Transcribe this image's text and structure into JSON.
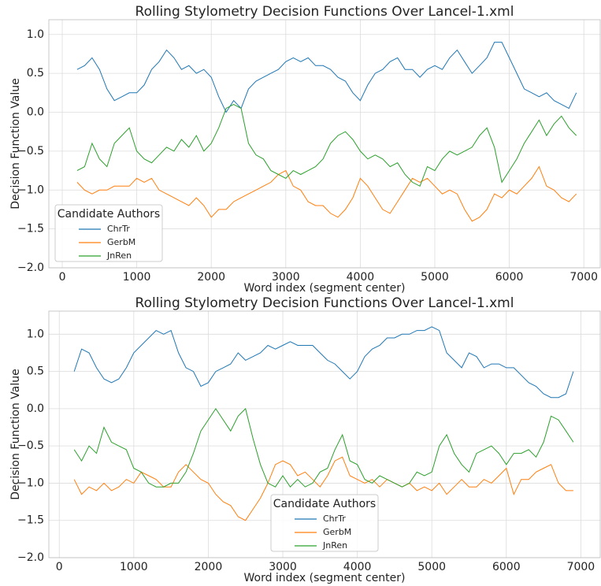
{
  "chart_data": [
    {
      "type": "line",
      "title": "Rolling Stylometry Decision Functions Over Lancel-1.xml",
      "x_label": "Word index (segment center)",
      "y_label": "Decision Function Value",
      "x": [
        200,
        300,
        400,
        500,
        600,
        700,
        800,
        900,
        1000,
        1100,
        1200,
        1300,
        1400,
        1500,
        1600,
        1700,
        1800,
        1900,
        2000,
        2100,
        2200,
        2300,
        2400,
        2500,
        2600,
        2700,
        2800,
        2900,
        3000,
        3100,
        3200,
        3300,
        3400,
        3500,
        3600,
        3700,
        3800,
        3900,
        4000,
        4100,
        4200,
        4300,
        4400,
        4500,
        4600,
        4700,
        4800,
        4900,
        5000,
        5100,
        5200,
        5300,
        5400,
        5500,
        5600,
        5700,
        5800,
        5900,
        6000,
        6100,
        6200,
        6300,
        6400,
        6500,
        6600,
        6700,
        6800,
        6900
      ],
      "series": [
        {
          "name": "ChrTr",
          "color": "#1f77b4",
          "values": [
            0.55,
            0.6,
            0.7,
            0.55,
            0.3,
            0.15,
            0.2,
            0.25,
            0.25,
            0.35,
            0.55,
            0.65,
            0.8,
            0.7,
            0.55,
            0.6,
            0.5,
            0.55,
            0.45,
            0.2,
            0.0,
            0.15,
            0.05,
            0.3,
            0.4,
            0.45,
            0.5,
            0.55,
            0.65,
            0.7,
            0.65,
            0.7,
            0.6,
            0.6,
            0.55,
            0.45,
            0.4,
            0.25,
            0.15,
            0.35,
            0.5,
            0.55,
            0.65,
            0.7,
            0.55,
            0.55,
            0.45,
            0.55,
            0.6,
            0.55,
            0.7,
            0.8,
            0.65,
            0.5,
            0.6,
            0.7,
            0.9,
            0.9,
            0.7,
            0.5,
            0.3,
            0.25,
            0.2,
            0.25,
            0.15,
            0.1,
            0.05,
            0.25
          ]
        },
        {
          "name": "GerbM",
          "color": "#ff7f0e",
          "values": [
            -0.9,
            -1.0,
            -1.05,
            -1.0,
            -1.0,
            -0.95,
            -0.95,
            -0.95,
            -0.85,
            -0.9,
            -0.85,
            -1.0,
            -1.05,
            -1.1,
            -1.15,
            -1.2,
            -1.1,
            -1.2,
            -1.35,
            -1.25,
            -1.25,
            -1.15,
            -1.1,
            -1.05,
            -1.0,
            -0.95,
            -0.9,
            -0.8,
            -0.75,
            -0.95,
            -1.0,
            -1.15,
            -1.2,
            -1.2,
            -1.3,
            -1.35,
            -1.25,
            -1.1,
            -0.85,
            -0.95,
            -1.1,
            -1.25,
            -1.3,
            -1.15,
            -1.0,
            -0.85,
            -0.9,
            -0.85,
            -0.95,
            -1.05,
            -1.0,
            -1.05,
            -1.25,
            -1.4,
            -1.35,
            -1.25,
            -1.05,
            -1.1,
            -1.0,
            -1.05,
            -0.95,
            -0.85,
            -0.7,
            -0.95,
            -1.0,
            -1.1,
            -1.15,
            -1.05
          ]
        },
        {
          "name": "JnRen",
          "color": "#2ca02c",
          "values": [
            -0.75,
            -0.7,
            -0.4,
            -0.6,
            -0.7,
            -0.4,
            -0.3,
            -0.2,
            -0.5,
            -0.6,
            -0.65,
            -0.55,
            -0.45,
            -0.5,
            -0.35,
            -0.45,
            -0.3,
            -0.5,
            -0.4,
            -0.2,
            0.05,
            0.1,
            0.05,
            -0.4,
            -0.55,
            -0.6,
            -0.75,
            -0.8,
            -0.85,
            -0.75,
            -0.8,
            -0.75,
            -0.7,
            -0.6,
            -0.4,
            -0.3,
            -0.25,
            -0.35,
            -0.5,
            -0.6,
            -0.55,
            -0.6,
            -0.7,
            -0.65,
            -0.8,
            -0.9,
            -0.95,
            -0.7,
            -0.75,
            -0.6,
            -0.5,
            -0.55,
            -0.5,
            -0.45,
            -0.3,
            -0.2,
            -0.45,
            -0.9,
            -0.75,
            -0.6,
            -0.4,
            -0.25,
            -0.1,
            -0.3,
            -0.15,
            -0.05,
            -0.2,
            -0.3
          ]
        }
      ],
      "xlim": [
        -180,
        7220
      ],
      "xticks": [
        0,
        1000,
        2000,
        3000,
        4000,
        5000,
        6000,
        7000
      ],
      "ylim": [
        -2.0,
        1.19
      ],
      "yticks": [
        {
          "value": -2.0,
          "label": "−2.0"
        },
        {
          "value": -1.5,
          "label": "−1.5"
        },
        {
          "value": -1.0,
          "label": "−1.0"
        },
        {
          "value": -0.5,
          "label": "−0.5"
        },
        {
          "value": 0.0,
          "label": "0.0"
        },
        {
          "value": 0.5,
          "label": "0.5"
        },
        {
          "value": 1.0,
          "label": "1.0"
        }
      ],
      "grid": true,
      "legend_title": "Candidate Authors",
      "legend_loc": "lower-left"
    },
    {
      "type": "line",
      "title": "Rolling Stylometry Decision Functions Over Lancel-1.xml",
      "x_label": "Word index (segment center)",
      "y_label": "Decision Function Value",
      "x": [
        200,
        300,
        400,
        500,
        600,
        700,
        800,
        900,
        1000,
        1100,
        1200,
        1300,
        1400,
        1500,
        1600,
        1700,
        1800,
        1900,
        2000,
        2100,
        2200,
        2300,
        2400,
        2500,
        2600,
        2700,
        2800,
        2900,
        3000,
        3100,
        3200,
        3300,
        3400,
        3500,
        3600,
        3700,
        3800,
        3900,
        4000,
        4100,
        4200,
        4300,
        4400,
        4500,
        4600,
        4700,
        4800,
        4900,
        5000,
        5100,
        5200,
        5300,
        5400,
        5500,
        5600,
        5700,
        5800,
        5900,
        6000,
        6100,
        6200,
        6300,
        6400,
        6500,
        6600,
        6700,
        6800,
        6900
      ],
      "series": [
        {
          "name": "ChrTr",
          "color": "#1f77b4",
          "values": [
            0.5,
            0.8,
            0.75,
            0.55,
            0.4,
            0.35,
            0.4,
            0.55,
            0.75,
            0.85,
            0.95,
            1.05,
            1.0,
            1.05,
            0.75,
            0.55,
            0.5,
            0.3,
            0.35,
            0.5,
            0.55,
            0.6,
            0.75,
            0.65,
            0.7,
            0.75,
            0.85,
            0.8,
            0.85,
            0.9,
            0.85,
            0.85,
            0.85,
            0.75,
            0.65,
            0.6,
            0.5,
            0.4,
            0.5,
            0.7,
            0.8,
            0.85,
            0.95,
            0.95,
            1.0,
            1.0,
            1.05,
            1.05,
            1.1,
            1.05,
            0.75,
            0.65,
            0.55,
            0.75,
            0.7,
            0.55,
            0.6,
            0.6,
            0.55,
            0.55,
            0.45,
            0.35,
            0.3,
            0.2,
            0.15,
            0.15,
            0.2,
            0.5
          ]
        },
        {
          "name": "GerbM",
          "color": "#ff7f0e",
          "values": [
            -0.95,
            -1.15,
            -1.05,
            -1.1,
            -1.0,
            -1.1,
            -1.05,
            -0.95,
            -1.0,
            -0.85,
            -0.9,
            -0.95,
            -1.05,
            -1.05,
            -0.85,
            -0.75,
            -0.85,
            -0.95,
            -1.0,
            -1.15,
            -1.25,
            -1.3,
            -1.45,
            -1.5,
            -1.35,
            -1.2,
            -1.0,
            -0.75,
            -0.7,
            -0.75,
            -0.9,
            -0.85,
            -0.95,
            -1.05,
            -0.9,
            -0.7,
            -0.65,
            -0.9,
            -0.95,
            -1.0,
            -0.95,
            -1.05,
            -0.95,
            -1.0,
            -1.05,
            -1.0,
            -1.1,
            -1.05,
            -1.1,
            -1.0,
            -1.15,
            -1.05,
            -0.95,
            -1.05,
            -1.05,
            -0.95,
            -1.0,
            -0.9,
            -0.8,
            -1.15,
            -0.95,
            -0.95,
            -0.85,
            -0.8,
            -0.75,
            -1.0,
            -1.1,
            -1.1
          ]
        },
        {
          "name": "JnRen",
          "color": "#2ca02c",
          "values": [
            -0.55,
            -0.7,
            -0.5,
            -0.6,
            -0.25,
            -0.45,
            -0.5,
            -0.55,
            -0.8,
            -0.85,
            -1.0,
            -1.05,
            -1.05,
            -1.0,
            -1.0,
            -0.85,
            -0.6,
            -0.3,
            -0.15,
            0.0,
            -0.15,
            -0.3,
            -0.1,
            0.0,
            -0.4,
            -0.75,
            -1.0,
            -1.05,
            -0.9,
            -1.05,
            -0.95,
            -1.05,
            -1.0,
            -0.85,
            -0.8,
            -0.55,
            -0.35,
            -0.7,
            -0.75,
            -0.95,
            -1.0,
            -0.9,
            -0.95,
            -1.0,
            -1.05,
            -1.0,
            -0.85,
            -0.9,
            -0.85,
            -0.5,
            -0.35,
            -0.6,
            -0.75,
            -0.85,
            -0.6,
            -0.55,
            -0.5,
            -0.6,
            -0.75,
            -0.6,
            -0.6,
            -0.55,
            -0.65,
            -0.45,
            -0.1,
            -0.15,
            -0.3,
            -0.45
          ]
        }
      ],
      "xlim": [
        -140,
        7260
      ],
      "xticks": [
        0,
        1000,
        2000,
        3000,
        4000,
        5000,
        6000,
        7000
      ],
      "ylim": [
        -2.0,
        1.31
      ],
      "yticks": [
        {
          "value": -2.0,
          "label": "−2.0"
        },
        {
          "value": -1.5,
          "label": "−1.5"
        },
        {
          "value": -1.0,
          "label": "−1.0"
        },
        {
          "value": -0.5,
          "label": "−0.5"
        },
        {
          "value": 0.0,
          "label": "0.0"
        },
        {
          "value": 0.5,
          "label": "0.5"
        },
        {
          "value": 1.0,
          "label": "1.0"
        }
      ],
      "grid": true,
      "legend_title": "Candidate Authors",
      "legend_loc": "lower-center"
    }
  ]
}
